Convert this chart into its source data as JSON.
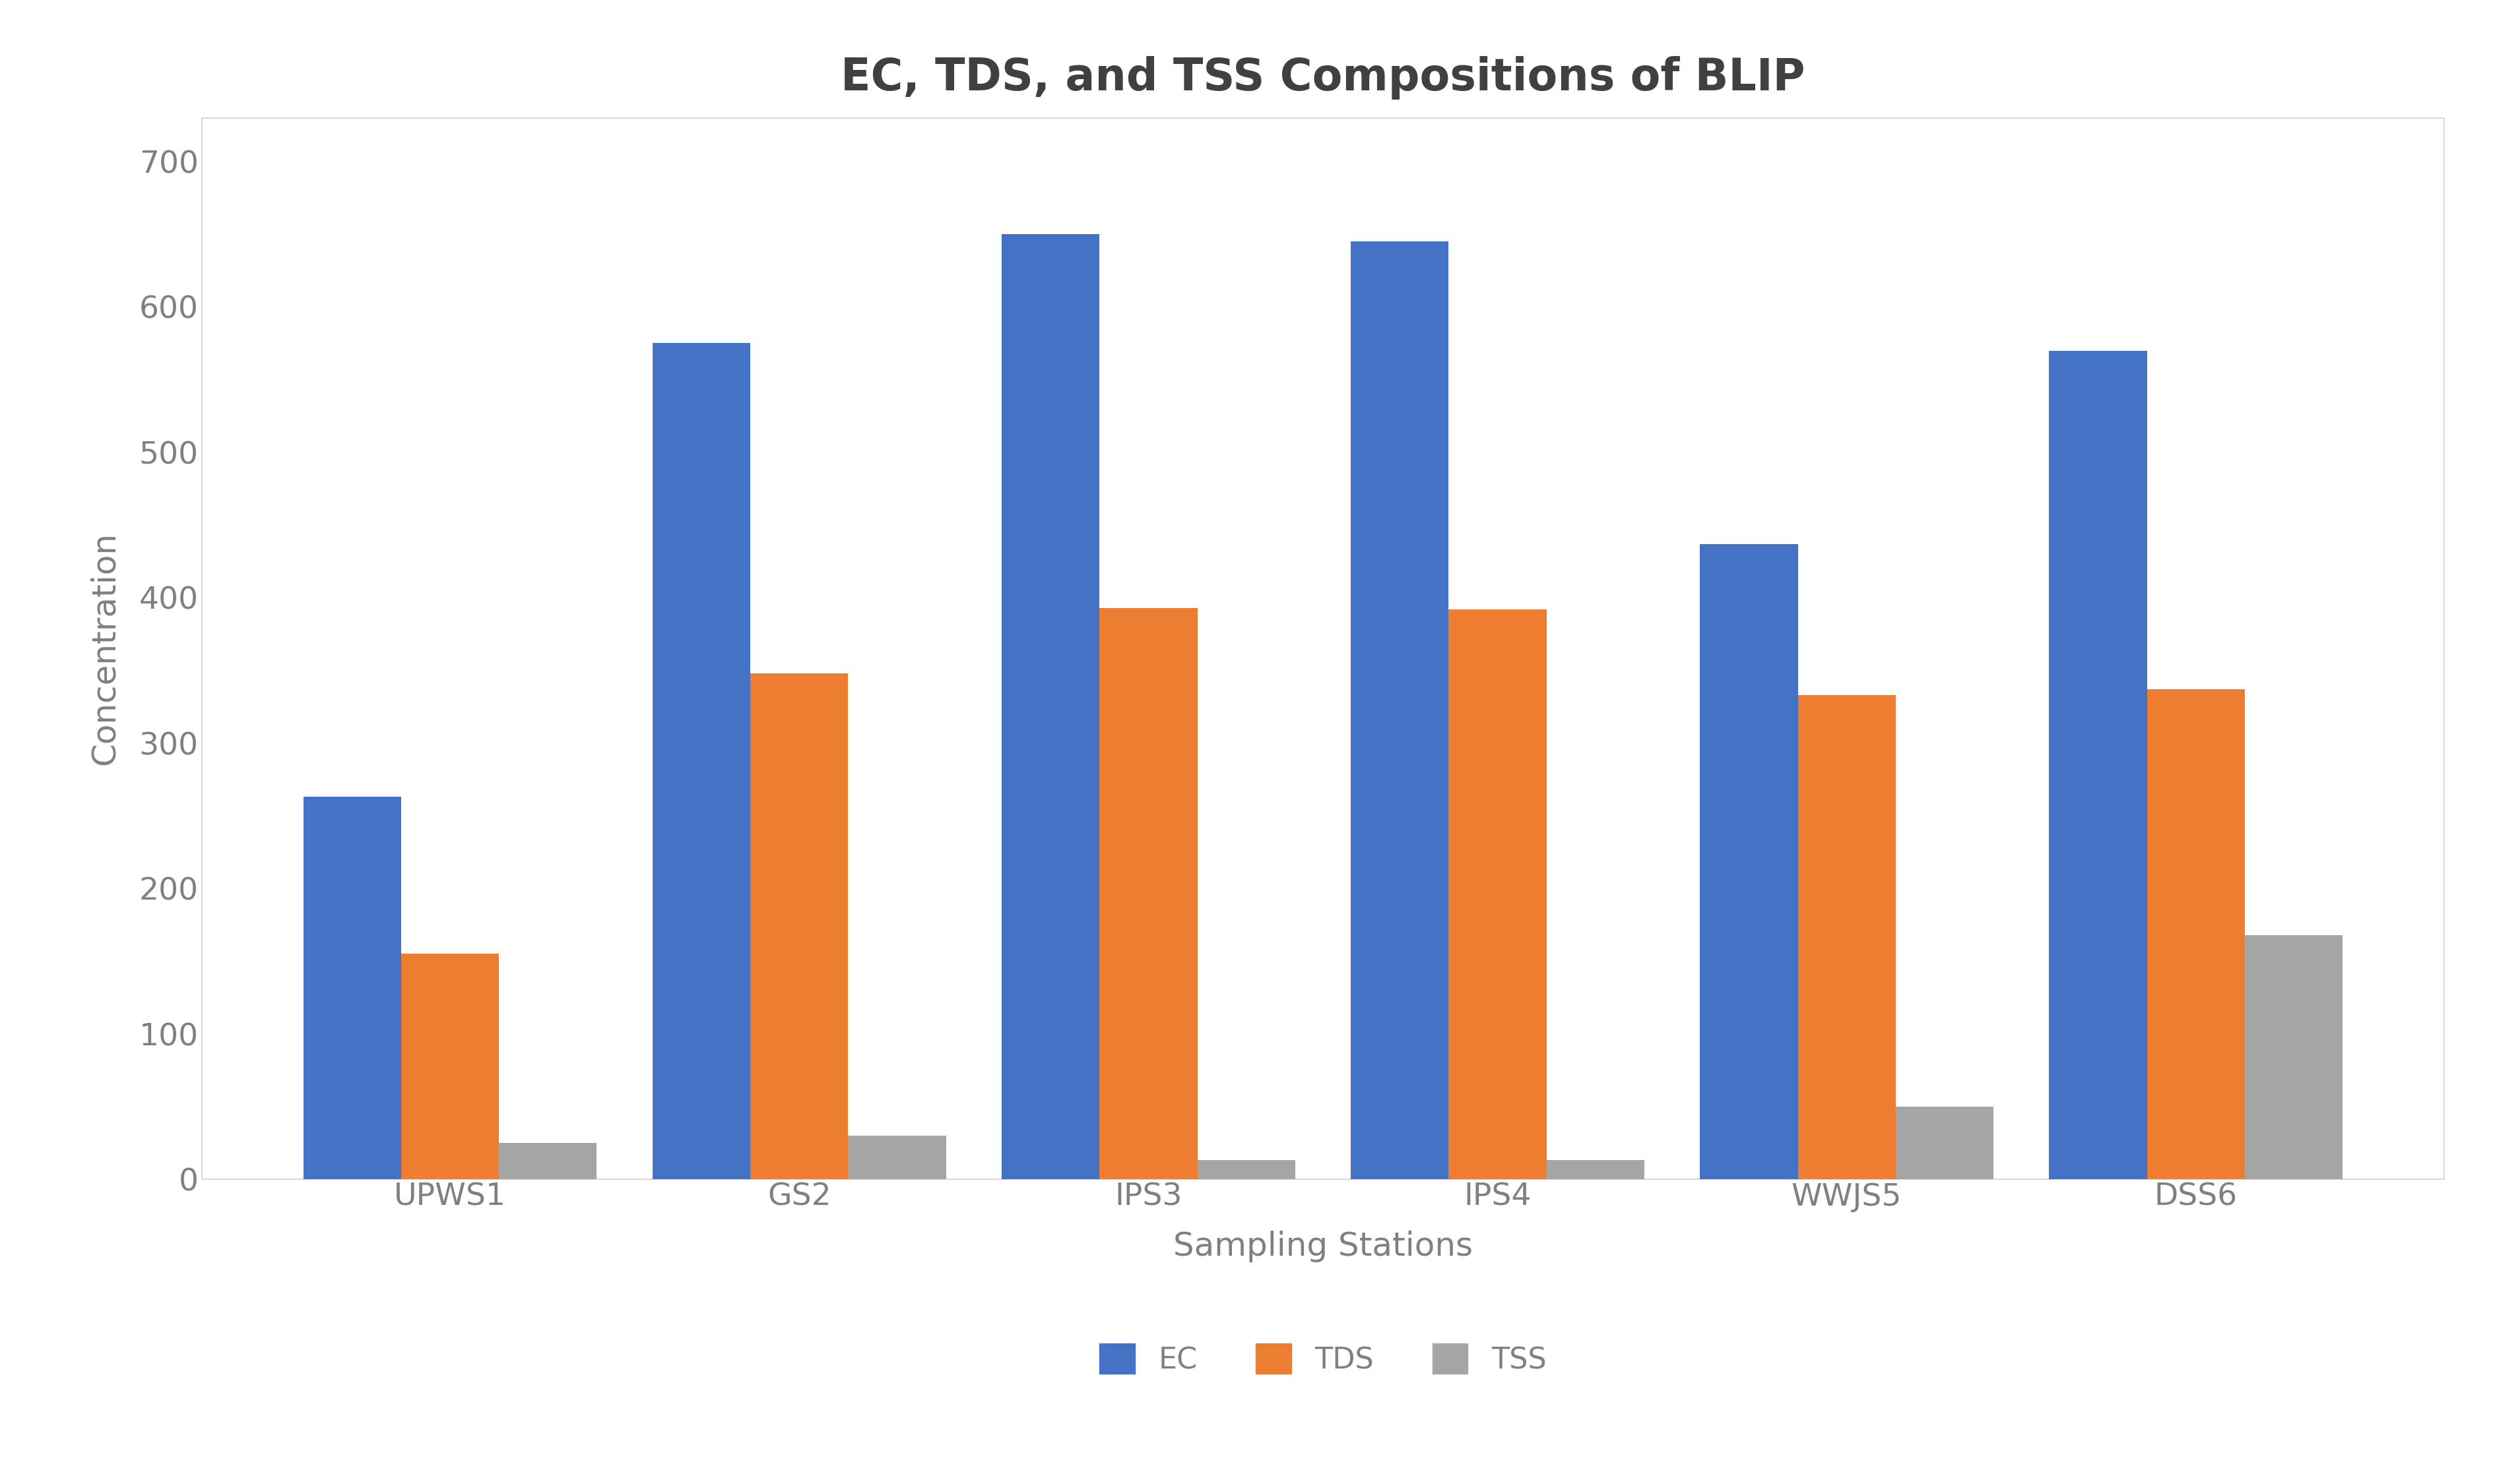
{
  "title": "EC, TDS, and TSS Compositions of BLIP",
  "xlabel": "Sampling Stations",
  "ylabel": "Concentration",
  "categories": [
    "UPWS1",
    "GS2",
    "IPS3",
    "IPS4",
    "WWJS5",
    "DSS6"
  ],
  "series": {
    "EC": [
      263,
      575,
      650,
      645,
      437,
      570
    ],
    "TDS": [
      155,
      348,
      393,
      392,
      333,
      337
    ],
    "TSS": [
      25,
      30,
      13,
      13,
      50,
      168
    ]
  },
  "colors": {
    "EC": "#4472C4",
    "TDS": "#ED7D31",
    "TSS": "#A5A5A5"
  },
  "ylim": [
    0,
    730
  ],
  "yticks": [
    0,
    100,
    200,
    300,
    400,
    500,
    600,
    700
  ],
  "bar_width": 0.28,
  "legend_labels": [
    "EC",
    "TDS",
    "TSS"
  ],
  "figure_facecolor": "#ffffff",
  "axes_facecolor": "#ffffff",
  "border_color": "#d9d9d9",
  "tick_color": "#808080",
  "title_fontsize": 48,
  "axis_label_fontsize": 36,
  "tick_fontsize": 34,
  "legend_fontsize": 32
}
